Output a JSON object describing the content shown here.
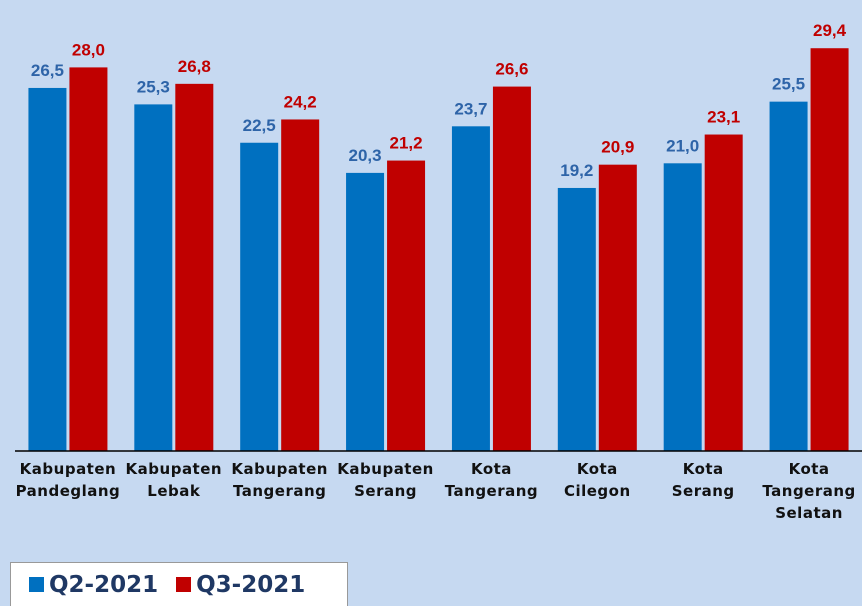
{
  "chart_data": {
    "type": "bar",
    "categories": [
      "Kabupaten Pandeglang",
      "Kabupaten Lebak",
      "Kabupaten Tangerang",
      "Kabupaten Serang",
      "Kota Tangerang",
      "Kota Cilegon",
      "Kota Serang",
      "Kota Tangerang Selatan"
    ],
    "series": [
      {
        "name": "Q2-2021",
        "color": "#0070c0",
        "label_color": "#2e64a8",
        "values": [
          26.5,
          25.3,
          22.5,
          20.3,
          23.7,
          19.2,
          21.0,
          25.5
        ],
        "value_labels": [
          "26,5",
          "25,3",
          "22,5",
          "20,3",
          "23,7",
          "19,2",
          "21,0",
          "25,5"
        ]
      },
      {
        "name": "Q3-2021",
        "color": "#c00000",
        "label_color": "#c00000",
        "values": [
          28.0,
          26.8,
          24.2,
          21.2,
          26.6,
          20.9,
          23.1,
          29.4
        ],
        "value_labels": [
          "28,0",
          "26,8",
          "24,2",
          "21,2",
          "26,6",
          "20,9",
          "23,1",
          "29,4"
        ]
      }
    ],
    "ylim": [
      0,
      30
    ],
    "legend": "bottom-left"
  }
}
